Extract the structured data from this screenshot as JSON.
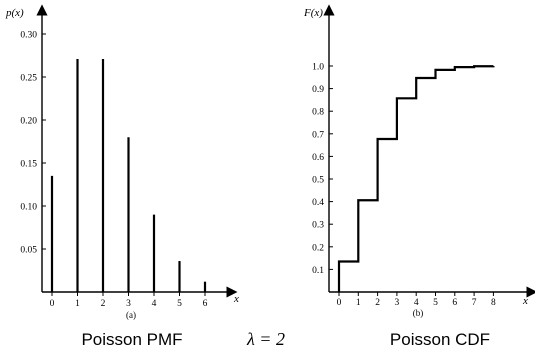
{
  "chart_data": [
    {
      "type": "bar",
      "ylabel": "p(x)",
      "xlabel": "x",
      "panel": "(a)",
      "caption": "Poisson PMF",
      "x": [
        0,
        1,
        2,
        3,
        4,
        5,
        6
      ],
      "values": [
        0.135,
        0.271,
        0.271,
        0.18,
        0.09,
        0.036,
        0.012
      ],
      "xlim": [
        0,
        6
      ],
      "ylim": [
        0,
        0.3
      ],
      "x_ticks": [
        "0",
        "1",
        "2",
        "3",
        "4",
        "5",
        "6"
      ],
      "y_ticks": [
        "0.05",
        "0.10",
        "0.15",
        "0.20",
        "0.25",
        "0.30"
      ],
      "y_tick_values": [
        0.05,
        0.1,
        0.15,
        0.2,
        0.25,
        0.3
      ]
    },
    {
      "type": "line",
      "step": true,
      "ylabel": "F(x)",
      "xlabel": "x",
      "panel": "(b)",
      "caption": "Poisson CDF",
      "x": [
        0,
        1,
        2,
        3,
        4,
        5,
        6,
        7,
        8
      ],
      "values": [
        0.135,
        0.406,
        0.677,
        0.857,
        0.947,
        0.983,
        0.995,
        0.999,
        1.0
      ],
      "xlim": [
        0,
        8
      ],
      "ylim": [
        0,
        1.0
      ],
      "x_ticks": [
        "0",
        "1",
        "2",
        "3",
        "4",
        "5",
        "6",
        "7",
        "8"
      ],
      "y_ticks": [
        "0.1",
        "0.2",
        "0.3",
        "0.4",
        "0.5",
        "0.6",
        "0.7",
        "0.8",
        "0.9",
        "1.0"
      ],
      "y_tick_values": [
        0.1,
        0.2,
        0.3,
        0.4,
        0.5,
        0.6,
        0.7,
        0.8,
        0.9,
        1.0
      ]
    }
  ],
  "parameter": "λ = 2"
}
